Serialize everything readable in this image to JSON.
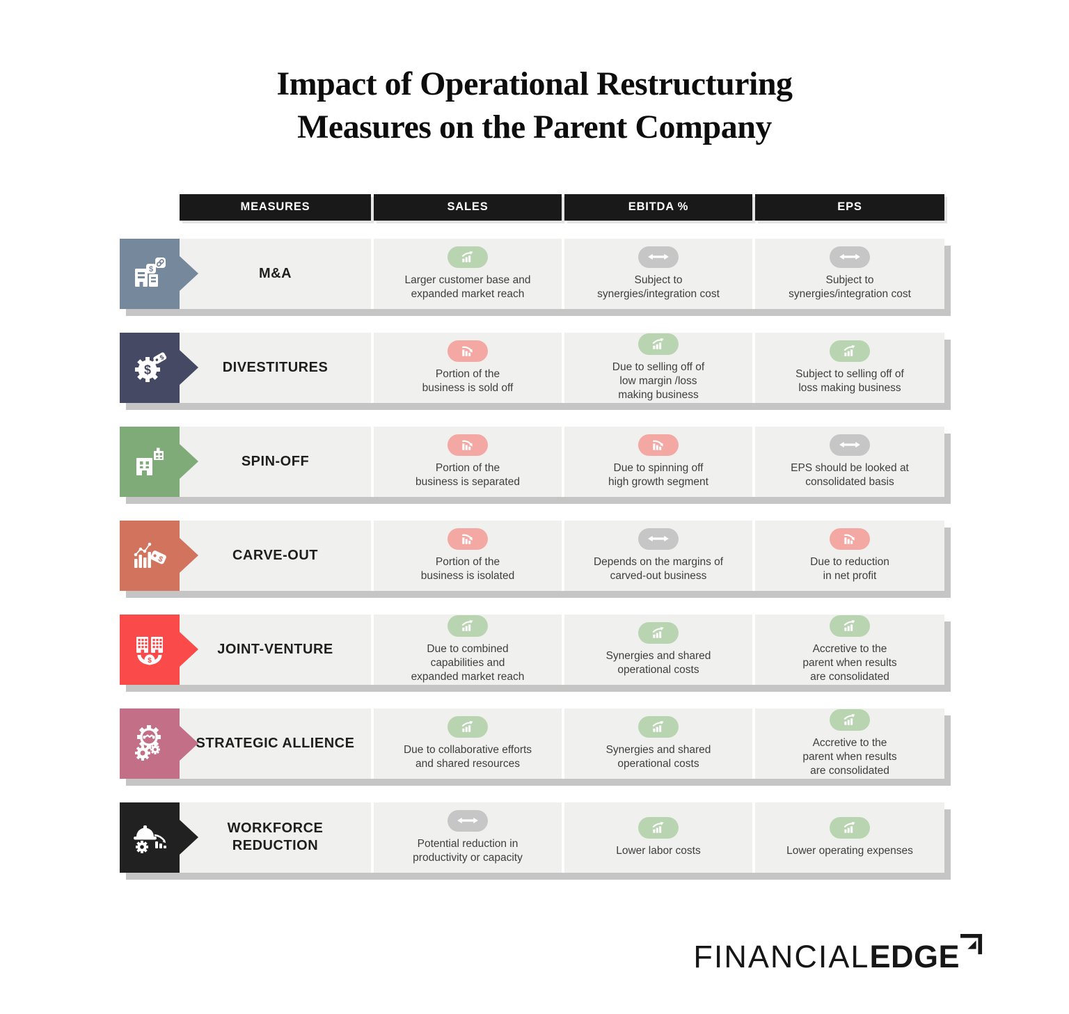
{
  "title": "Impact of Operational Restructuring\nMeasures on the Parent Company",
  "table": {
    "headers": [
      "MEASURES",
      "SALES",
      "EBITDA %",
      "EPS"
    ],
    "rows": [
      {
        "measure": "M&A",
        "icon": "merger-buildings-link-icon",
        "tile_color": "#76889B",
        "cells": [
          {
            "trend": "up",
            "text": "Larger customer base and\nexpanded market reach"
          },
          {
            "trend": "neutral",
            "text": "Subject to\nsynergies/integration cost"
          },
          {
            "trend": "neutral",
            "text": "Subject to\nsynergies/integration cost"
          }
        ]
      },
      {
        "measure": "DIVESTITURES",
        "icon": "gear-dollar-tag-icon",
        "tile_color": "#454963",
        "cells": [
          {
            "trend": "down",
            "text": "Portion of the\nbusiness is sold off"
          },
          {
            "trend": "up",
            "text": "Due to selling off of\nlow margin /loss\nmaking business"
          },
          {
            "trend": "up",
            "text": "Subject to selling off of\nloss making business"
          }
        ]
      },
      {
        "measure": "SPIN-OFF",
        "icon": "split-buildings-icon",
        "tile_color": "#7FAB79",
        "cells": [
          {
            "trend": "down",
            "text": "Portion of the\nbusiness is separated"
          },
          {
            "trend": "down",
            "text": "Due to spinning off\nhigh growth segment"
          },
          {
            "trend": "neutral",
            "text": "EPS should be looked at\nconsolidated basis"
          }
        ]
      },
      {
        "measure": "CARVE-OUT",
        "icon": "chart-price-tag-icon",
        "tile_color": "#D2735D",
        "cells": [
          {
            "trend": "down",
            "text": "Portion of the\nbusiness is isolated"
          },
          {
            "trend": "neutral",
            "text": "Depends on the margins of\ncarved-out business"
          },
          {
            "trend": "down",
            "text": "Due to reduction\nin net profit"
          }
        ]
      },
      {
        "measure": "JOINT-VENTURE",
        "icon": "buildings-partnership-icon",
        "tile_color": "#FB4A4A",
        "cells": [
          {
            "trend": "up",
            "text": "Due to combined\ncapabilities and\nexpanded market reach"
          },
          {
            "trend": "up",
            "text": "Synergies and shared\noperational costs"
          },
          {
            "trend": "up",
            "text": "Accretive to the\nparent when results\nare consolidated"
          }
        ]
      },
      {
        "measure": "STRATEGIC ALLIENCE",
        "icon": "gears-handshake-icon",
        "tile_color": "#C26F87",
        "cells": [
          {
            "trend": "up",
            "text": "Due to collaborative efforts\nand shared resources"
          },
          {
            "trend": "up",
            "text": "Synergies and shared\noperational costs"
          },
          {
            "trend": "up",
            "text": "Accretive to the\nparent when results\nare consolidated"
          }
        ]
      },
      {
        "measure": "WORKFORCE\nREDUCTION",
        "icon": "worker-helmet-decline-icon",
        "tile_color": "#212121",
        "cells": [
          {
            "trend": "neutral",
            "text": "Potential reduction in\nproductivity or capacity"
          },
          {
            "trend": "up",
            "text": "Lower labor costs"
          },
          {
            "trend": "up",
            "text": "Lower operating expenses"
          }
        ]
      }
    ]
  },
  "trend_colors": {
    "up": "#B9D4B0",
    "down": "#F4A8A3",
    "neutral": "#C6C6C6"
  },
  "logo": {
    "part1": "FINANCIAL",
    "part2": "EDGE"
  }
}
